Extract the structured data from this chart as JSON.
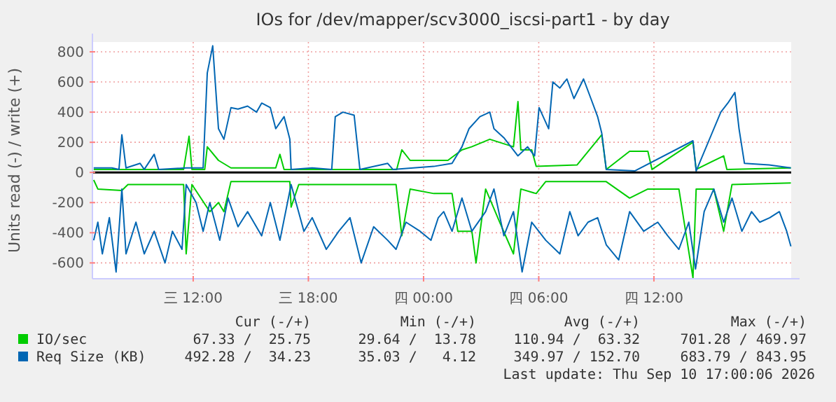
{
  "chart_data": {
    "type": "line",
    "title": "IOs for /dev/mapper/scv3000_iscsi-part1 - by day",
    "ylabel": "Units read (-) / write (+)",
    "xlim": [
      "2026-09-09T06:45",
      "2026-09-10T19:09"
    ],
    "ylim": [
      -705,
      865
    ],
    "xticks": [
      {
        "value": "2026-09-09T12:00",
        "label": "三 12:00"
      },
      {
        "value": "2026-09-09T18:00",
        "label": "三 18:00"
      },
      {
        "value": "2026-09-10T00:00",
        "label": "四 00:00"
      },
      {
        "value": "2026-09-10T06:00",
        "label": "四 06:00"
      },
      {
        "value": "2026-09-10T12:00",
        "label": "四 12:00"
      }
    ],
    "yticks": [
      -600,
      -400,
      -200,
      0,
      200,
      400,
      600,
      800
    ],
    "grid": true,
    "legend": "bottom left",
    "ref_lines": [
      {
        "axis": "y",
        "value": 0,
        "color": "#000000"
      }
    ],
    "series": [
      {
        "color": "#00cc00",
        "x": [
          "2026-09-09T06:49",
          "2026-09-09T07:02",
          "2026-09-09T08:17",
          "2026-09-09T08:36",
          "2026-09-09T11:30",
          "2026-09-09T11:38",
          "2026-09-09T11:56",
          "2026-09-09T12:52",
          "2026-09-09T13:19",
          "2026-09-09T13:36",
          "2026-09-09T13:58",
          "2026-09-09T17:02",
          "2026-09-09T17:06",
          "2026-09-09T17:30",
          "2026-09-09T22:34",
          "2026-09-09T22:52",
          "2026-09-09T23:18",
          "2026-09-10T00:32",
          "2026-09-10T01:29",
          "2026-09-10T01:47",
          "2026-09-10T02:31",
          "2026-09-10T02:44",
          "2026-09-10T03:14",
          "2026-09-10T03:58",
          "2026-09-10T04:41",
          "2026-09-10T05:04",
          "2026-09-10T05:52",
          "2026-09-10T06:22",
          "2026-09-10T09:30",
          "2026-09-10T10:44",
          "2026-09-10T11:41",
          "2026-09-10T13:18",
          "2026-09-10T14:02",
          "2026-09-10T14:12",
          "2026-09-10T15:07",
          "2026-09-10T15:38",
          "2026-09-10T16:04",
          "2026-09-10T19:08"
        ],
        "values": [
          -50,
          -110,
          -120,
          -80,
          -80,
          -540,
          -80,
          -260,
          -200,
          -260,
          -60,
          -60,
          -230,
          -80,
          -80,
          -420,
          -110,
          -140,
          -140,
          -390,
          -390,
          -600,
          -110,
          -330,
          -540,
          -110,
          -140,
          -60,
          -60,
          -170,
          -110,
          -110,
          -700,
          -110,
          -110,
          -390,
          -80,
          -70
        ]
      },
      {
        "name": "IO/sec",
        "color": "#00cc00",
        "x": [
          "2026-09-09T06:49",
          "2026-09-09T11:30",
          "2026-09-09T11:47",
          "2026-09-09T11:56",
          "2026-09-09T12:36",
          "2026-09-09T12:44",
          "2026-09-09T13:19",
          "2026-09-09T13:58",
          "2026-09-09T16:18",
          "2026-09-09T16:31",
          "2026-09-09T16:44",
          "2026-09-09T22:36",
          "2026-09-09T22:52",
          "2026-09-09T23:18",
          "2026-09-10T01:16",
          "2026-09-10T02:00",
          "2026-09-10T02:30",
          "2026-09-10T03:27",
          "2026-09-10T04:41",
          "2026-09-10T04:55",
          "2026-09-10T05:04",
          "2026-09-10T05:38",
          "2026-09-10T05:52",
          "2026-09-10T08:00",
          "2026-09-10T09:17",
          "2026-09-10T09:31",
          "2026-09-10T10:44",
          "2026-09-10T11:41",
          "2026-09-10T11:54",
          "2026-09-10T14:02",
          "2026-09-10T14:12",
          "2026-09-10T15:38",
          "2026-09-10T15:48",
          "2026-09-10T19:08"
        ],
        "values": [
          20,
          20,
          240,
          20,
          20,
          170,
          80,
          30,
          30,
          120,
          20,
          20,
          150,
          80,
          80,
          150,
          170,
          220,
          170,
          470,
          150,
          150,
          40,
          50,
          250,
          20,
          140,
          140,
          20,
          200,
          20,
          110,
          20,
          30
        ]
      },
      {
        "color": "#0066b3",
        "x": [
          "2026-09-09T06:49",
          "2026-09-09T07:02",
          "2026-09-09T07:16",
          "2026-09-09T07:38",
          "2026-09-09T07:59",
          "2026-09-09T08:17",
          "2026-09-09T08:30",
          "2026-09-09T09:01",
          "2026-09-09T09:27",
          "2026-09-09T09:58",
          "2026-09-09T10:32",
          "2026-09-09T10:55",
          "2026-09-09T11:25",
          "2026-09-09T11:38",
          "2026-09-09T12:09",
          "2026-09-09T12:31",
          "2026-09-09T12:52",
          "2026-09-09T13:23",
          "2026-09-09T13:49",
          "2026-09-09T14:20",
          "2026-09-09T14:50",
          "2026-09-09T15:34",
          "2026-09-09T16:01",
          "2026-09-09T16:31",
          "2026-09-09T17:06",
          "2026-09-09T17:46",
          "2026-09-09T18:12",
          "2026-09-09T18:56",
          "2026-09-09T19:35",
          "2026-09-09T20:10",
          "2026-09-09T20:45",
          "2026-09-09T21:24",
          "2026-09-09T22:08",
          "2026-09-09T22:34",
          "2026-09-09T23:05",
          "2026-09-09T23:49",
          "2026-09-10T00:23",
          "2026-09-10T00:46",
          "2026-09-10T01:03",
          "2026-09-10T01:29",
          "2026-09-10T02:00",
          "2026-09-10T02:31",
          "2026-09-10T03:14",
          "2026-09-10T03:40",
          "2026-09-10T04:11",
          "2026-09-10T04:41",
          "2026-09-10T05:08",
          "2026-09-10T05:38",
          "2026-09-10T06:22",
          "2026-09-10T07:06",
          "2026-09-10T07:37",
          "2026-09-10T08:03",
          "2026-09-10T08:34",
          "2026-09-10T09:04",
          "2026-09-10T09:31",
          "2026-09-10T10:10",
          "2026-09-10T10:44",
          "2026-09-10T11:28",
          "2026-09-10T12:12",
          "2026-09-10T12:43",
          "2026-09-10T13:18",
          "2026-09-10T13:49",
          "2026-09-10T14:10",
          "2026-09-10T14:37",
          "2026-09-10T15:07",
          "2026-09-10T15:38",
          "2026-09-10T16:04",
          "2026-09-10T16:35",
          "2026-09-10T17:05",
          "2026-09-10T17:31",
          "2026-09-10T18:02",
          "2026-09-10T18:32",
          "2026-09-10T18:55",
          "2026-09-10T19:08"
        ],
        "values": [
          -450,
          -330,
          -540,
          -300,
          -660,
          -110,
          -540,
          -330,
          -540,
          -390,
          -600,
          -390,
          -510,
          -80,
          -200,
          -390,
          -200,
          -450,
          -170,
          -360,
          -260,
          -420,
          -200,
          -450,
          -80,
          -390,
          -300,
          -510,
          -390,
          -300,
          -600,
          -360,
          -450,
          -510,
          -330,
          -390,
          -450,
          -300,
          -260,
          -390,
          -170,
          -390,
          -260,
          -110,
          -420,
          -260,
          -660,
          -330,
          -450,
          -540,
          -260,
          -420,
          -330,
          -300,
          -480,
          -580,
          -260,
          -390,
          -330,
          -420,
          -510,
          -330,
          -640,
          -260,
          -110,
          -330,
          -170,
          -390,
          -260,
          -330,
          -300,
          -260,
          -390,
          -490
        ]
      },
      {
        "name": "Req Size (KB)",
        "color": "#0066b3",
        "x": [
          "2026-09-09T06:49",
          "2026-09-09T07:46",
          "2026-09-09T08:08",
          "2026-09-09T08:17",
          "2026-09-09T08:30",
          "2026-09-09T09:14",
          "2026-09-09T09:27",
          "2026-09-09T09:58",
          "2026-09-09T10:12",
          "2026-09-09T11:38",
          "2026-09-09T12:31",
          "2026-09-09T12:44",
          "2026-09-09T13:01",
          "2026-09-09T13:19",
          "2026-09-09T13:36",
          "2026-09-09T13:58",
          "2026-09-09T14:20",
          "2026-09-09T14:50",
          "2026-09-09T15:18",
          "2026-09-09T15:34",
          "2026-09-09T16:01",
          "2026-09-09T16:18",
          "2026-09-09T16:44",
          "2026-09-09T17:02",
          "2026-09-09T17:06",
          "2026-09-09T18:12",
          "2026-09-09T19:13",
          "2026-09-09T19:24",
          "2026-09-09T19:48",
          "2026-09-09T20:23",
          "2026-09-09T20:41",
          "2026-09-09T22:08",
          "2026-09-09T22:24",
          "2026-09-10T00:32",
          "2026-09-10T01:29",
          "2026-09-10T02:00",
          "2026-09-10T02:22",
          "2026-09-10T02:56",
          "2026-09-10T03:27",
          "2026-09-10T03:40",
          "2026-09-10T04:11",
          "2026-09-10T04:55",
          "2026-09-10T05:25",
          "2026-09-10T05:47",
          "2026-09-10T06:01",
          "2026-09-10T06:31",
          "2026-09-10T06:44",
          "2026-09-10T07:06",
          "2026-09-10T07:28",
          "2026-09-10T07:50",
          "2026-09-10T08:20",
          "2026-09-10T08:43",
          "2026-09-10T09:04",
          "2026-09-10T09:17",
          "2026-09-10T09:31",
          "2026-09-10T11:00",
          "2026-09-10T14:02",
          "2026-09-10T14:12",
          "2026-09-10T15:29",
          "2026-09-10T15:51",
          "2026-09-10T16:13",
          "2026-09-10T16:26",
          "2026-09-10T16:43",
          "2026-09-10T18:00",
          "2026-09-10T19:08"
        ],
        "values": [
          30,
          30,
          20,
          250,
          30,
          60,
          20,
          120,
          20,
          30,
          30,
          660,
          840,
          290,
          220,
          430,
          420,
          440,
          400,
          460,
          430,
          290,
          370,
          220,
          20,
          30,
          20,
          370,
          400,
          380,
          20,
          60,
          20,
          40,
          60,
          170,
          290,
          370,
          400,
          290,
          230,
          110,
          170,
          110,
          430,
          290,
          600,
          560,
          620,
          490,
          620,
          490,
          370,
          260,
          20,
          10,
          210,
          10,
          400,
          460,
          530,
          290,
          60,
          50,
          30
        ]
      }
    ],
    "annotations": [
      "Cur (-/+)",
      "Min (-/+)",
      "Avg (-/+)",
      "Max (-/+)",
      "67.33 /  25.75",
      "29.64 /  13.78",
      "110.94 /  63.32",
      "701.28 / 469.97",
      "492.28 /  34.23",
      "35.03 /   4.12",
      "349.97 / 152.70",
      "683.79 / 843.95",
      "Last update: Thu Sep 10 17:00:06 2026"
    ]
  }
}
